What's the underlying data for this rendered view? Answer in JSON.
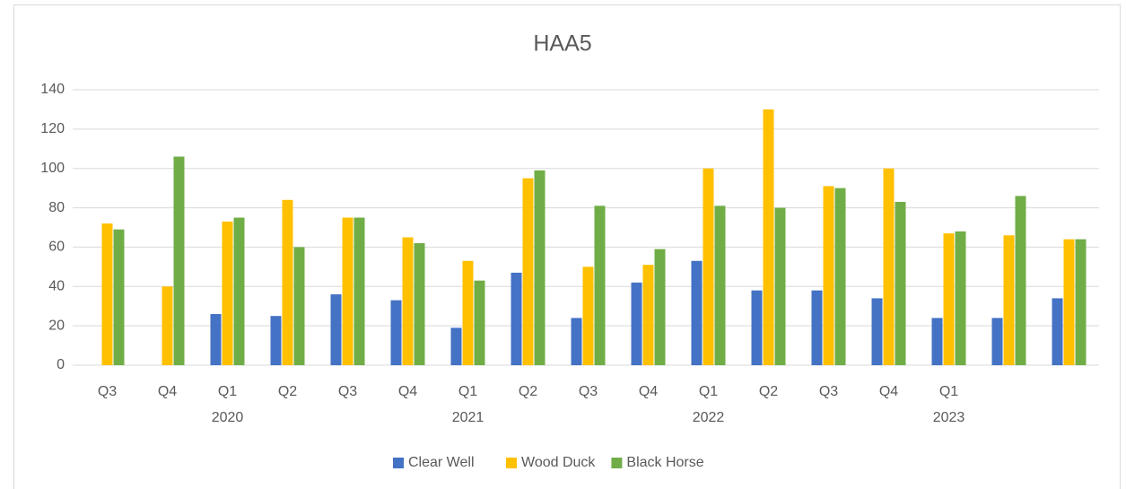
{
  "chart_data": {
    "type": "bar",
    "title": "HAA5",
    "categories": [
      "Q3",
      "Q4",
      "Q1",
      "Q2",
      "Q3",
      "Q4",
      "Q1",
      "Q2",
      "Q3",
      "Q4",
      "Q1",
      "Q2",
      "Q3",
      "Q4",
      "Q1",
      null,
      null
    ],
    "years": [
      null,
      null,
      "2020",
      null,
      null,
      null,
      "2021",
      null,
      null,
      null,
      "2022",
      null,
      null,
      null,
      "2023",
      null,
      null
    ],
    "series": [
      {
        "name": "Clear Well",
        "color": "#4472c4",
        "values": [
          null,
          null,
          26,
          25,
          36,
          33,
          19,
          47,
          24,
          42,
          53,
          38,
          38,
          34,
          24,
          24,
          34
        ]
      },
      {
        "name": "Wood Duck",
        "color": "#ffc000",
        "values": [
          72,
          40,
          73,
          84,
          75,
          65,
          53,
          95,
          50,
          51,
          100,
          130,
          91,
          100,
          67,
          66,
          64
        ]
      },
      {
        "name": "Black Horse",
        "color": "#70ad47",
        "values": [
          69,
          106,
          75,
          60,
          75,
          62,
          43,
          99,
          81,
          59,
          81,
          80,
          90,
          83,
          68,
          86,
          64
        ]
      }
    ],
    "ylim": [
      0,
      140
    ],
    "yticks": [
      0,
      20,
      40,
      60,
      80,
      100,
      120,
      140
    ],
    "grid": true,
    "legend": "bottom"
  }
}
